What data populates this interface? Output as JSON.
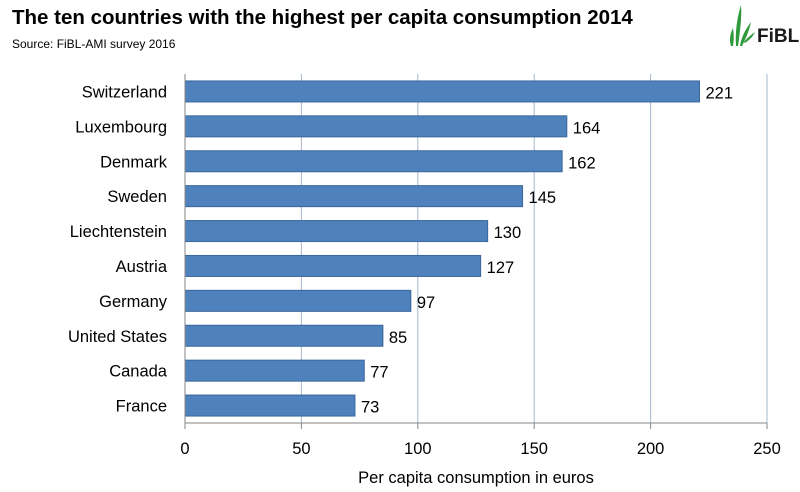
{
  "header": {
    "title": "The ten countries with the highest per capita consumption 2014",
    "subtitle": "Source: FiBL-AMI survey 2016",
    "logo_text": "FiBL"
  },
  "colors": {
    "bar_fill": "#4f81bd",
    "bar_stroke": "#3a679c",
    "grid": "#a6b8cc",
    "logo_green": "#2f9a3c"
  },
  "chart_data": {
    "type": "bar",
    "orientation": "horizontal",
    "title": "The ten countries with the highest per capita consumption 2014",
    "xlabel": "Per capita consumption in euros",
    "ylabel": "",
    "xlim": [
      0,
      250
    ],
    "ticks": [
      0,
      50,
      100,
      150,
      200,
      250
    ],
    "grid": true,
    "categories": [
      "Switzerland",
      "Luxembourg",
      "Denmark",
      "Sweden",
      "Liechtenstein",
      "Austria",
      "Germany",
      "United States",
      "Canada",
      "France"
    ],
    "values": [
      221,
      164,
      162,
      145,
      130,
      127,
      97,
      85,
      77,
      73
    ]
  }
}
